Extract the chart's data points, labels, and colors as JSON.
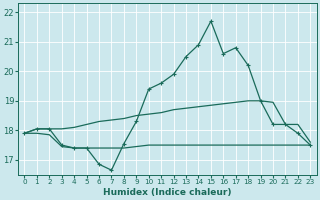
{
  "xlabel": "Humidex (Indice chaleur)",
  "background_color": "#cce8ed",
  "line_color": "#1a6b5a",
  "xlim": [
    -0.5,
    23.5
  ],
  "ylim": [
    16.5,
    22.3
  ],
  "yticks": [
    17,
    18,
    19,
    20,
    21,
    22
  ],
  "xticks": [
    0,
    1,
    2,
    3,
    4,
    5,
    6,
    7,
    8,
    9,
    10,
    11,
    12,
    13,
    14,
    15,
    16,
    17,
    18,
    19,
    20,
    21,
    22,
    23
  ],
  "x": [
    0,
    1,
    2,
    3,
    4,
    5,
    6,
    7,
    8,
    9,
    10,
    11,
    12,
    13,
    14,
    15,
    16,
    17,
    18,
    19,
    20,
    21,
    22,
    23
  ],
  "y_main": [
    17.9,
    18.05,
    18.05,
    17.5,
    17.4,
    17.4,
    16.85,
    16.65,
    17.55,
    18.3,
    19.4,
    19.6,
    19.9,
    20.5,
    20.9,
    21.7,
    20.6,
    20.8,
    20.2,
    19.0,
    18.2,
    18.2,
    17.9,
    17.5
  ],
  "y_upper": [
    17.9,
    18.05,
    18.05,
    18.05,
    18.1,
    18.2,
    18.3,
    18.35,
    18.4,
    18.5,
    18.55,
    18.6,
    18.7,
    18.75,
    18.8,
    18.85,
    18.9,
    18.95,
    19.0,
    19.0,
    18.95,
    18.2,
    18.2,
    17.6
  ],
  "y_lower": [
    17.9,
    17.9,
    17.85,
    17.45,
    17.4,
    17.4,
    17.4,
    17.4,
    17.4,
    17.45,
    17.5,
    17.5,
    17.5,
    17.5,
    17.5,
    17.5,
    17.5,
    17.5,
    17.5,
    17.5,
    17.5,
    17.5,
    17.5,
    17.5
  ]
}
